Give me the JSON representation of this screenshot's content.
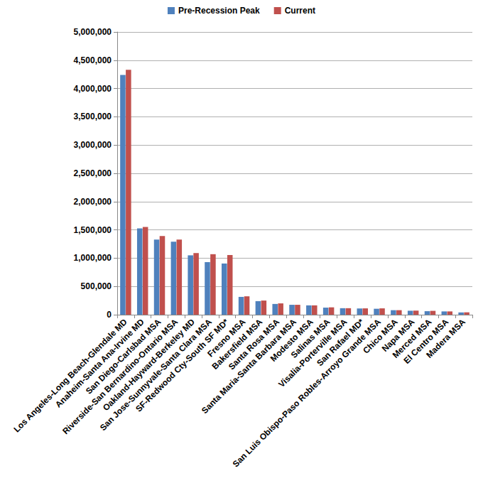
{
  "chart_data": {
    "type": "bar",
    "categories": [
      "Los Angeles-Long Beach-Glendale MD",
      "Anaheim-Santa Ana-Irvine MD",
      "San Diego-Carlsbad MSA",
      "Riverside-San Bernardino-Ontario MSA",
      "Oakland-Hayward-Berkeley MD",
      "San Jose-Sunnyvale-Santa Clara MSA",
      "SF-Redwood Cty-South SF MD*",
      "Fresno MSA",
      "Bakersfield MSA",
      "Santa Rosa MSA",
      "Santa Maria-Santa Barbara MSA",
      "Modesto MSA",
      "Salinas MSA",
      "Visalia-Porterville MSA",
      "San Rafael MD*",
      "San Luis Obispo-Paso Robles-Arroyo Grande MSA",
      "Chico MSA",
      "Napa MSA",
      "Merced MSA",
      "El Centro MSA",
      "Madera MSA"
    ],
    "series": [
      {
        "name": "Pre-Recession Peak",
        "color": "#4f81bd",
        "values": [
          4240000,
          1525000,
          1330000,
          1290000,
          1050000,
          930000,
          905000,
          315000,
          240000,
          190000,
          175000,
          165000,
          125000,
          115000,
          110000,
          105000,
          80000,
          70000,
          62000,
          58000,
          40000
        ]
      },
      {
        "name": "Current",
        "color": "#c0504d",
        "values": [
          4330000,
          1550000,
          1390000,
          1330000,
          1090000,
          1070000,
          1055000,
          325000,
          250000,
          200000,
          175000,
          165000,
          130000,
          115000,
          112000,
          112000,
          80000,
          72000,
          68000,
          58000,
          42000
        ]
      }
    ],
    "ylim": [
      0,
      5000000
    ],
    "yticks": [
      0,
      {
        "value": 500000,
        "label": "500,000"
      },
      {
        "value": 1000000,
        "label": "1,000,000"
      },
      {
        "value": 1500000,
        "label": "1,500,000"
      },
      {
        "value": 2000000,
        "label": "2,000,000"
      },
      {
        "value": 2500000,
        "label": "2,500,000"
      },
      {
        "value": 3000000,
        "label": "3,000,000"
      },
      {
        "value": 3500000,
        "label": "3,500,000"
      },
      {
        "value": 4000000,
        "label": "4,000,000"
      },
      {
        "value": 4500000,
        "label": "4,500,000"
      },
      {
        "value": 5000000,
        "label": "5,000,000"
      }
    ],
    "grid": true,
    "legend": "top"
  }
}
